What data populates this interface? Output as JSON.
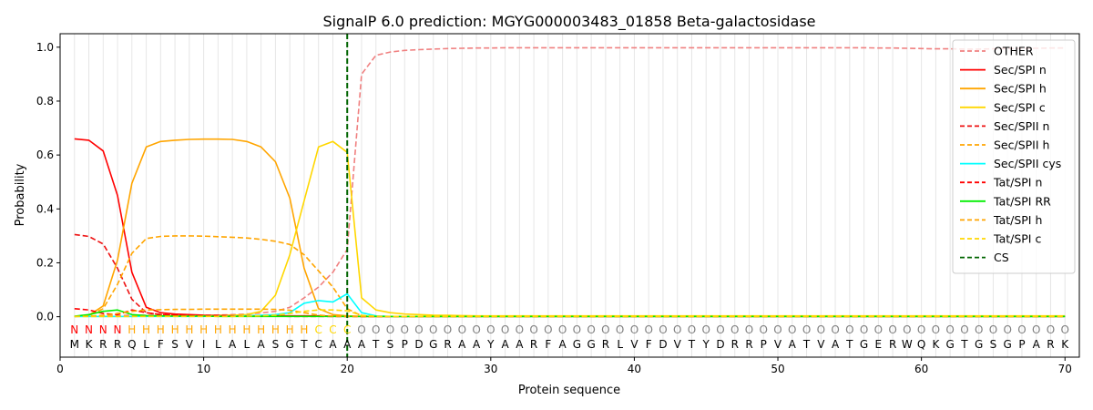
{
  "chart_data": {
    "type": "line",
    "title": "SignalP 6.0 prediction: MGYG000003483_01858 Beta-galactosidase",
    "xlabel": "Protein sequence",
    "ylabel": "Probability",
    "xlim": [
      0,
      71
    ],
    "ylim": [
      -0.15,
      1.05
    ],
    "x_ticks": [
      "0",
      "10",
      "20",
      "30",
      "40",
      "50",
      "60",
      "70"
    ],
    "y_ticks": [
      "0.0",
      "0.2",
      "0.4",
      "0.6",
      "0.8",
      "1.0"
    ],
    "grid": "vertical lines at every residue",
    "legend_position": "top-right",
    "sequence": [
      "M",
      "K",
      "R",
      "R",
      "Q",
      "L",
      "F",
      "S",
      "V",
      "I",
      "L",
      "A",
      "L",
      "A",
      "S",
      "G",
      "T",
      "C",
      "A",
      "A",
      "A",
      "T",
      "S",
      "P",
      "D",
      "G",
      "R",
      "A",
      "A",
      "Y",
      "A",
      "A",
      "R",
      "F",
      "A",
      "G",
      "G",
      "R",
      "L",
      "V",
      "F",
      "D",
      "V",
      "T",
      "Y",
      "D",
      "R",
      "R",
      "P",
      "V",
      "A",
      "T",
      "V",
      "A",
      "T",
      "G",
      "E",
      "R",
      "W",
      "Q",
      "K",
      "G",
      "T",
      "G",
      "S",
      "G",
      "P",
      "A",
      "R",
      "K"
    ],
    "region_labels": [
      "N",
      "N",
      "N",
      "N",
      "H",
      "H",
      "H",
      "H",
      "H",
      "H",
      "H",
      "H",
      "H",
      "H",
      "H",
      "H",
      "H",
      "C",
      "C",
      "C",
      "O",
      "O",
      "O",
      "O",
      "O",
      "O",
      "O",
      "O",
      "O",
      "O",
      "O",
      "O",
      "O",
      "O",
      "O",
      "O",
      "O",
      "O",
      "O",
      "O",
      "O",
      "O",
      "O",
      "O",
      "O",
      "O",
      "O",
      "O",
      "O",
      "O",
      "O",
      "O",
      "O",
      "O",
      "O",
      "O",
      "O",
      "O",
      "O",
      "O",
      "O",
      "O",
      "O",
      "O",
      "O",
      "O",
      "O",
      "O",
      "O",
      "O"
    ],
    "region_colors": {
      "N": "#ff0000",
      "H": "#ffa500",
      "C": "#ffd700",
      "O": "#808080"
    },
    "cleavage_site": 20,
    "series": [
      {
        "name": "OTHER",
        "color": "#f08080",
        "dash": "dashed",
        "values": [
          0.001,
          0.002,
          0.003,
          0.004,
          0.006,
          0.006,
          0.006,
          0.006,
          0.006,
          0.006,
          0.006,
          0.008,
          0.01,
          0.014,
          0.02,
          0.035,
          0.07,
          0.11,
          0.165,
          0.25,
          0.9,
          0.97,
          0.982,
          0.988,
          0.991,
          0.993,
          0.995,
          0.996,
          0.997,
          0.997,
          0.998,
          0.998,
          0.998,
          0.998,
          0.998,
          0.998,
          0.998,
          0.998,
          0.998,
          0.998,
          0.998,
          0.998,
          0.998,
          0.998,
          0.998,
          0.998,
          0.998,
          0.998,
          0.998,
          0.998,
          0.998,
          0.998,
          0.998,
          0.998,
          0.998,
          0.998,
          0.997,
          0.997,
          0.996,
          0.995,
          0.994,
          0.994,
          0.993,
          0.993,
          0.994,
          0.995,
          0.996,
          0.996,
          0.997,
          0.997
        ]
      },
      {
        "name": "Sec/SPI n",
        "color": "#ff0000",
        "dash": "solid",
        "values": [
          0.66,
          0.655,
          0.615,
          0.45,
          0.165,
          0.035,
          0.015,
          0.01,
          0.008,
          0.006,
          0.005,
          0.005,
          0.004,
          0.004,
          0.004,
          0.003,
          0.003,
          0.003,
          0.002,
          0.002,
          0.001,
          0.001,
          0.001,
          0.001,
          0.001,
          0.001,
          0.001,
          0.001,
          0.001,
          0.001,
          0.001,
          0.001,
          0.001,
          0.001,
          0.001,
          0.001,
          0.001,
          0.001,
          0.001,
          0.001,
          0.001,
          0.001,
          0.001,
          0.001,
          0.001,
          0.001,
          0.001,
          0.001,
          0.001,
          0.001,
          0.001,
          0.001,
          0.001,
          0.001,
          0.001,
          0.001,
          0.001,
          0.001,
          0.001,
          0.001,
          0.001,
          0.001,
          0.001,
          0.001,
          0.001,
          0.001,
          0.001,
          0.001,
          0.001,
          0.001
        ]
      },
      {
        "name": "Sec/SPI h",
        "color": "#ffa500",
        "dash": "solid",
        "values": [
          0.001,
          0.005,
          0.04,
          0.21,
          0.495,
          0.63,
          0.65,
          0.655,
          0.658,
          0.659,
          0.659,
          0.658,
          0.65,
          0.63,
          0.575,
          0.44,
          0.18,
          0.03,
          0.008,
          0.003,
          0.001,
          0.001,
          0.001,
          0.001,
          0.001,
          0.001,
          0.001,
          0.001,
          0.001,
          0.001,
          0.001,
          0.001,
          0.001,
          0.001,
          0.001,
          0.001,
          0.001,
          0.001,
          0.001,
          0.001,
          0.001,
          0.001,
          0.001,
          0.001,
          0.001,
          0.001,
          0.001,
          0.001,
          0.001,
          0.001,
          0.001,
          0.001,
          0.001,
          0.001,
          0.001,
          0.001,
          0.001,
          0.001,
          0.001,
          0.001,
          0.001,
          0.001,
          0.001,
          0.001,
          0.001,
          0.001,
          0.001,
          0.001,
          0.001,
          0.001
        ]
      },
      {
        "name": "Sec/SPI c",
        "color": "#ffd700",
        "dash": "solid",
        "values": [
          0.001,
          0.001,
          0.001,
          0.001,
          0.001,
          0.002,
          0.003,
          0.003,
          0.003,
          0.003,
          0.004,
          0.005,
          0.008,
          0.02,
          0.08,
          0.23,
          0.43,
          0.63,
          0.65,
          0.61,
          0.07,
          0.025,
          0.015,
          0.01,
          0.008,
          0.006,
          0.005,
          0.004,
          0.003,
          0.003,
          0.003,
          0.003,
          0.003,
          0.003,
          0.003,
          0.003,
          0.003,
          0.003,
          0.003,
          0.003,
          0.003,
          0.003,
          0.003,
          0.003,
          0.003,
          0.003,
          0.003,
          0.003,
          0.003,
          0.003,
          0.003,
          0.003,
          0.003,
          0.003,
          0.003,
          0.003,
          0.003,
          0.003,
          0.003,
          0.003,
          0.003,
          0.003,
          0.003,
          0.003,
          0.003,
          0.003,
          0.003,
          0.003,
          0.003,
          0.003
        ]
      },
      {
        "name": "Sec/SPII n",
        "color": "#ee1111",
        "dash": "dashed",
        "values": [
          0.305,
          0.298,
          0.27,
          0.18,
          0.065,
          0.015,
          0.008,
          0.006,
          0.005,
          0.004,
          0.004,
          0.003,
          0.003,
          0.003,
          0.003,
          0.002,
          0.002,
          0.002,
          0.001,
          0.001,
          0.001,
          0.001,
          0.001,
          0.001,
          0.001,
          0.001,
          0.001,
          0.001,
          0.001,
          0.001,
          0.001,
          0.001,
          0.001,
          0.001,
          0.001,
          0.001,
          0.001,
          0.001,
          0.001,
          0.001,
          0.001,
          0.001,
          0.001,
          0.001,
          0.001,
          0.001,
          0.001,
          0.001,
          0.001,
          0.001,
          0.001,
          0.001,
          0.001,
          0.001,
          0.001,
          0.001,
          0.001,
          0.001,
          0.001,
          0.001,
          0.001,
          0.001,
          0.001,
          0.001,
          0.001,
          0.001,
          0.001,
          0.001,
          0.001,
          0.001
        ]
      },
      {
        "name": "Sec/SPII h",
        "color": "#ffa500",
        "dash": "dashed",
        "values": [
          0.001,
          0.004,
          0.03,
          0.12,
          0.235,
          0.29,
          0.298,
          0.3,
          0.3,
          0.299,
          0.297,
          0.295,
          0.292,
          0.287,
          0.28,
          0.268,
          0.23,
          0.17,
          0.11,
          0.03,
          0.003,
          0.001,
          0.001,
          0.001,
          0.001,
          0.001,
          0.001,
          0.001,
          0.001,
          0.001,
          0.001,
          0.001,
          0.001,
          0.001,
          0.001,
          0.001,
          0.001,
          0.001,
          0.001,
          0.001,
          0.001,
          0.001,
          0.001,
          0.001,
          0.001,
          0.001,
          0.001,
          0.001,
          0.001,
          0.001,
          0.001,
          0.001,
          0.001,
          0.001,
          0.001,
          0.001,
          0.001,
          0.001,
          0.001,
          0.001,
          0.001,
          0.001,
          0.001,
          0.001,
          0.001,
          0.001,
          0.001,
          0.001,
          0.001,
          0.001
        ]
      },
      {
        "name": "Sec/SPII cys",
        "color": "#00ffff",
        "dash": "solid",
        "values": [
          0.001,
          0.001,
          0.001,
          0.001,
          0.001,
          0.001,
          0.001,
          0.001,
          0.001,
          0.001,
          0.002,
          0.002,
          0.003,
          0.005,
          0.008,
          0.015,
          0.05,
          0.06,
          0.055,
          0.085,
          0.015,
          0.003,
          0.001,
          0.001,
          0.001,
          0.001,
          0.001,
          0.001,
          0.001,
          0.001,
          0.001,
          0.001,
          0.001,
          0.001,
          0.001,
          0.001,
          0.001,
          0.001,
          0.001,
          0.001,
          0.001,
          0.001,
          0.001,
          0.001,
          0.001,
          0.001,
          0.001,
          0.001,
          0.001,
          0.001,
          0.001,
          0.001,
          0.001,
          0.001,
          0.001,
          0.001,
          0.001,
          0.001,
          0.001,
          0.001,
          0.001,
          0.001,
          0.001,
          0.001,
          0.001,
          0.001,
          0.001,
          0.001,
          0.001,
          0.001
        ]
      },
      {
        "name": "Tat/SPI n",
        "color": "#ff0000",
        "dash": "dashed",
        "values": [
          0.03,
          0.025,
          0.012,
          0.008,
          0.025,
          0.015,
          0.008,
          0.005,
          0.004,
          0.003,
          0.003,
          0.002,
          0.002,
          0.002,
          0.002,
          0.001,
          0.001,
          0.001,
          0.001,
          0.001,
          0.001,
          0.001,
          0.001,
          0.001,
          0.001,
          0.001,
          0.001,
          0.001,
          0.001,
          0.001,
          0.001,
          0.001,
          0.001,
          0.001,
          0.001,
          0.001,
          0.001,
          0.001,
          0.001,
          0.001,
          0.001,
          0.001,
          0.001,
          0.001,
          0.001,
          0.001,
          0.001,
          0.001,
          0.001,
          0.001,
          0.001,
          0.001,
          0.001,
          0.001,
          0.001,
          0.001,
          0.001,
          0.001,
          0.001,
          0.001,
          0.001,
          0.001,
          0.001,
          0.001,
          0.001,
          0.001,
          0.001,
          0.001,
          0.001,
          0.001
        ]
      },
      {
        "name": "Tat/SPI RR",
        "color": "#00ee00",
        "dash": "solid",
        "values": [
          0.002,
          0.008,
          0.02,
          0.025,
          0.008,
          0.004,
          0.003,
          0.002,
          0.002,
          0.002,
          0.001,
          0.001,
          0.001,
          0.001,
          0.001,
          0.001,
          0.001,
          0.001,
          0.001,
          0.001,
          0.001,
          0.001,
          0.001,
          0.001,
          0.001,
          0.001,
          0.001,
          0.001,
          0.001,
          0.001,
          0.001,
          0.001,
          0.001,
          0.001,
          0.001,
          0.001,
          0.001,
          0.001,
          0.001,
          0.001,
          0.001,
          0.001,
          0.001,
          0.001,
          0.001,
          0.001,
          0.001,
          0.001,
          0.001,
          0.001,
          0.001,
          0.001,
          0.001,
          0.001,
          0.001,
          0.001,
          0.001,
          0.001,
          0.001,
          0.001,
          0.001,
          0.001,
          0.001,
          0.001,
          0.001,
          0.001,
          0.001,
          0.001,
          0.001,
          0.001
        ]
      },
      {
        "name": "Tat/SPI h",
        "color": "#ffa500",
        "dash": "dashed",
        "values": [
          0.001,
          0.002,
          0.005,
          0.012,
          0.02,
          0.025,
          0.026,
          0.027,
          0.027,
          0.028,
          0.028,
          0.028,
          0.028,
          0.028,
          0.027,
          0.024,
          0.015,
          0.006,
          0.002,
          0.001,
          0.001,
          0.001,
          0.001,
          0.001,
          0.001,
          0.001,
          0.001,
          0.001,
          0.001,
          0.001,
          0.001,
          0.001,
          0.001,
          0.001,
          0.001,
          0.001,
          0.001,
          0.001,
          0.001,
          0.001,
          0.001,
          0.001,
          0.001,
          0.001,
          0.001,
          0.001,
          0.001,
          0.001,
          0.001,
          0.001,
          0.001,
          0.001,
          0.001,
          0.001,
          0.001,
          0.001,
          0.001,
          0.001,
          0.001,
          0.001,
          0.001,
          0.001,
          0.001,
          0.001,
          0.001,
          0.001,
          0.001,
          0.001,
          0.001,
          0.001
        ]
      },
      {
        "name": "Tat/SPI c",
        "color": "#ffd700",
        "dash": "dashed",
        "values": [
          0.001,
          0.001,
          0.001,
          0.001,
          0.001,
          0.001,
          0.001,
          0.001,
          0.001,
          0.001,
          0.001,
          0.001,
          0.002,
          0.003,
          0.006,
          0.012,
          0.02,
          0.025,
          0.025,
          0.022,
          0.005,
          0.002,
          0.001,
          0.001,
          0.001,
          0.001,
          0.001,
          0.001,
          0.001,
          0.001,
          0.001,
          0.001,
          0.001,
          0.001,
          0.001,
          0.001,
          0.001,
          0.001,
          0.001,
          0.001,
          0.001,
          0.001,
          0.001,
          0.001,
          0.001,
          0.001,
          0.001,
          0.001,
          0.001,
          0.001,
          0.001,
          0.001,
          0.001,
          0.001,
          0.001,
          0.001,
          0.001,
          0.001,
          0.001,
          0.001,
          0.001,
          0.001,
          0.001,
          0.001,
          0.001,
          0.001,
          0.001,
          0.001,
          0.001,
          0.001
        ]
      },
      {
        "name": "CS",
        "color": "#006400",
        "dash": "dashed",
        "type": "vline",
        "x": 20
      }
    ]
  }
}
